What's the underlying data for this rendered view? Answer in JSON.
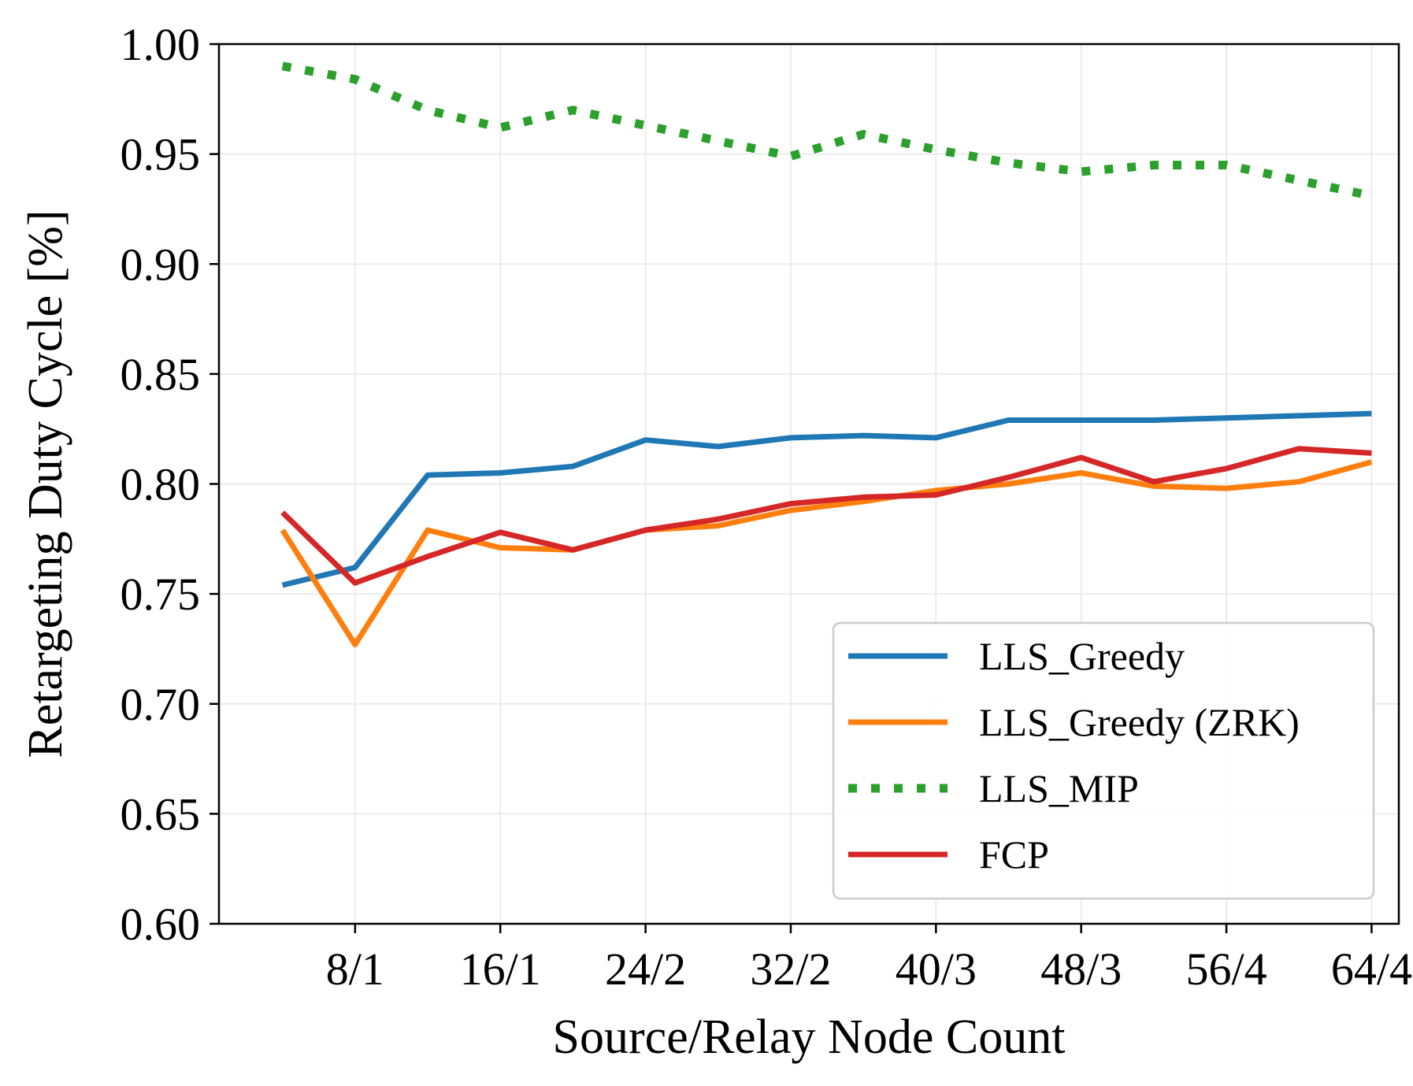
{
  "chart_data": {
    "type": "line",
    "title": "",
    "xlabel": "Source/Relay Node Count",
    "ylabel": "Retargeting Duty Cycle [%]",
    "ylim": [
      0.6,
      1.0
    ],
    "yticks": [
      "0.60",
      "0.65",
      "0.70",
      "0.75",
      "0.80",
      "0.85",
      "0.90",
      "0.95",
      "1.00"
    ],
    "x": [
      4,
      8,
      12,
      16,
      20,
      24,
      28,
      32,
      36,
      40,
      44,
      48,
      52,
      56,
      60,
      64
    ],
    "xlim": [
      0.5,
      65.5
    ],
    "xticks": [
      8,
      16,
      24,
      32,
      40,
      48,
      56,
      64
    ],
    "xtick_labels": [
      "8/1",
      "16/1",
      "24/2",
      "32/2",
      "40/3",
      "48/3",
      "56/4",
      "64/4"
    ],
    "grid": true,
    "legend_position": "lower right",
    "series": [
      {
        "name": "LLS_Greedy",
        "color": "#1f77b4",
        "style": "solid",
        "values": [
          0.754,
          0.762,
          0.804,
          0.805,
          0.808,
          0.82,
          0.817,
          0.821,
          0.822,
          0.821,
          0.829,
          0.829,
          0.829,
          0.83,
          0.831,
          0.832
        ]
      },
      {
        "name": "LLS_Greedy (ZRK)",
        "color": "#ff7f0e",
        "style": "solid",
        "values": [
          0.779,
          0.727,
          0.779,
          0.771,
          0.77,
          0.779,
          0.781,
          0.788,
          0.792,
          0.797,
          0.8,
          0.805,
          0.799,
          0.798,
          0.801,
          0.81
        ]
      },
      {
        "name": "LLS_MIP",
        "color": "#2ca02c",
        "style": "dotted",
        "values": [
          0.99,
          0.984,
          0.97,
          0.962,
          0.97,
          0.963,
          0.956,
          0.949,
          0.959,
          0.952,
          0.946,
          0.942,
          0.945,
          0.945,
          0.938,
          0.931
        ]
      },
      {
        "name": "FCP",
        "color": "#d62728",
        "style": "solid",
        "values": [
          0.787,
          0.755,
          0.767,
          0.778,
          0.77,
          0.779,
          0.784,
          0.791,
          0.794,
          0.795,
          0.803,
          0.812,
          0.801,
          0.807,
          0.816,
          0.814
        ]
      }
    ]
  }
}
